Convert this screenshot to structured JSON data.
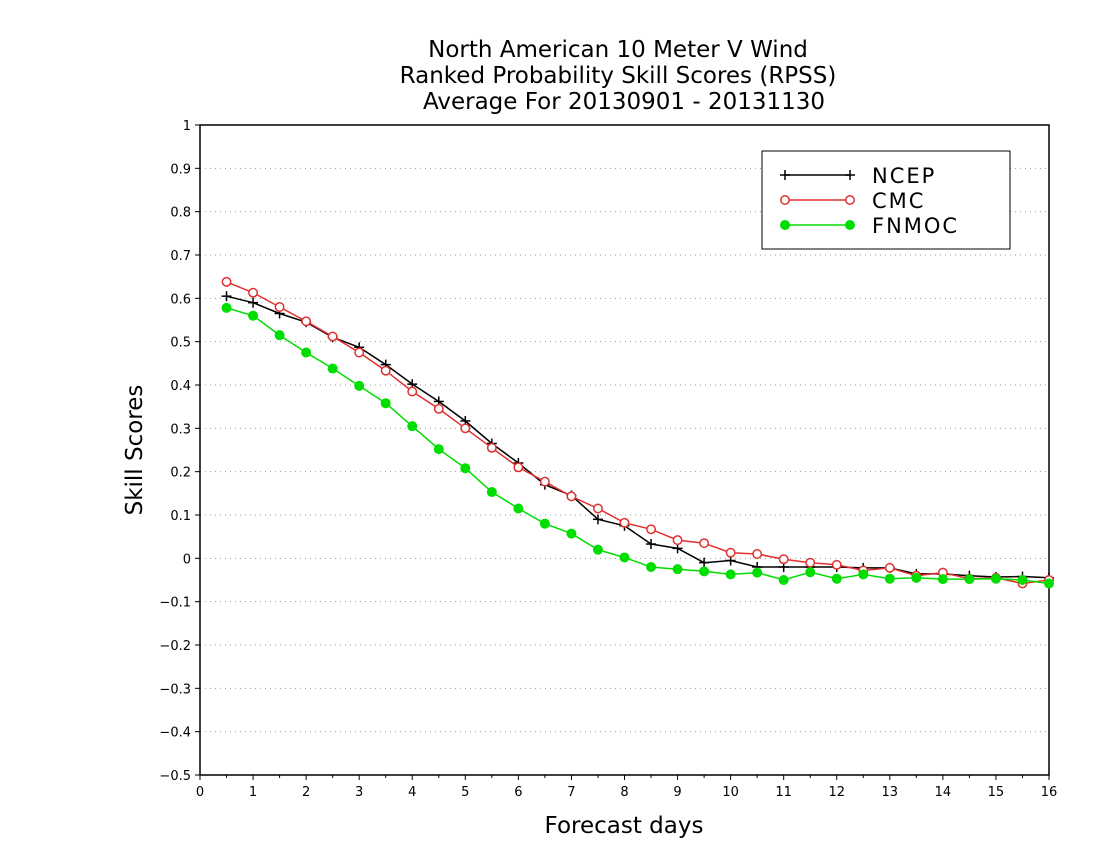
{
  "chart_data": {
    "type": "line",
    "title": [
      "North American 10 Meter V Wind",
      "Ranked Probability Skill Scores (RPSS)",
      "Average For 20130901 - 20131130"
    ],
    "xlabel": "Forecast days",
    "ylabel": "Skill Scores",
    "xlim": [
      0,
      16
    ],
    "ylim": [
      -0.5,
      1
    ],
    "xticks": [
      0,
      1,
      2,
      3,
      4,
      5,
      6,
      7,
      8,
      9,
      10,
      11,
      12,
      13,
      14,
      15,
      16
    ],
    "yticks": [
      1,
      0.9,
      0.8,
      0.7,
      0.6,
      0.5,
      0.4,
      0.3,
      0.2,
      0.1,
      0,
      -0.1,
      -0.2,
      -0.3,
      -0.4,
      -0.5
    ],
    "ytick_labels": [
      "1",
      "0.9",
      "0.8",
      "0.7",
      "0.6",
      "0.5",
      "0.4",
      "0.3",
      "0.2",
      "0.1",
      "0",
      "−0.1",
      "−0.2",
      "−0.3",
      "−0.4",
      "−0.5"
    ],
    "grid": "horizontal dotted",
    "legend_position": "top-right",
    "x": [
      0.5,
      1,
      1.5,
      2,
      2.5,
      3,
      3.5,
      4,
      4.5,
      5,
      5.5,
      6,
      6.5,
      7,
      7.5,
      8,
      8.5,
      9,
      9.5,
      10,
      10.5,
      11,
      11.5,
      12,
      12.5,
      13,
      13.5,
      14,
      14.5,
      15,
      15.5,
      16
    ],
    "series": [
      {
        "name": "NCEP",
        "color": "#000000",
        "marker": "plus",
        "values": [
          0.605,
          0.59,
          0.565,
          0.545,
          0.51,
          0.487,
          0.447,
          0.402,
          0.362,
          0.317,
          0.265,
          0.22,
          0.17,
          0.145,
          0.09,
          0.075,
          0.033,
          0.023,
          -0.01,
          -0.005,
          -0.02,
          -0.02,
          -0.02,
          -0.02,
          -0.022,
          -0.022,
          -0.036,
          -0.036,
          -0.04,
          -0.043,
          -0.042,
          -0.045
        ]
      },
      {
        "name": "CMC",
        "color": "#e03030",
        "marker": "open-circle",
        "values": [
          0.638,
          0.613,
          0.58,
          0.547,
          0.512,
          0.475,
          0.433,
          0.385,
          0.345,
          0.3,
          0.255,
          0.21,
          0.177,
          0.143,
          0.115,
          0.082,
          0.067,
          0.042,
          0.035,
          0.013,
          0.01,
          -0.002,
          -0.01,
          -0.015,
          -0.028,
          -0.022,
          -0.04,
          -0.033,
          -0.047,
          -0.045,
          -0.058,
          -0.05
        ]
      },
      {
        "name": "FNMOC",
        "color": "#00dd00",
        "marker": "filled-circle",
        "values": [
          0.578,
          0.56,
          0.515,
          0.475,
          0.438,
          0.398,
          0.358,
          0.305,
          0.252,
          0.208,
          0.153,
          0.115,
          0.08,
          0.057,
          0.02,
          0.002,
          -0.02,
          -0.025,
          -0.03,
          -0.037,
          -0.033,
          -0.05,
          -0.032,
          -0.047,
          -0.037,
          -0.047,
          -0.045,
          -0.048,
          -0.048,
          -0.047,
          -0.05,
          -0.058
        ]
      }
    ]
  }
}
